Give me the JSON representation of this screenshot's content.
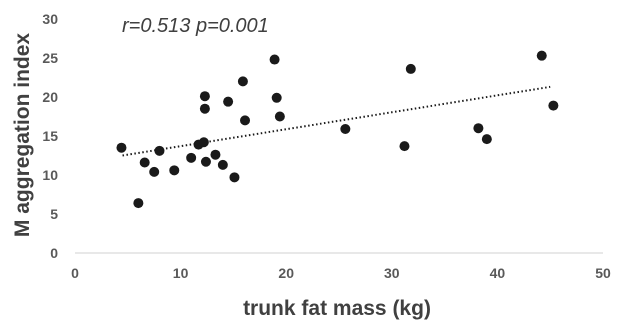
{
  "chart_data": {
    "type": "scatter",
    "xlabel": "trunk fat mass (kg)",
    "ylabel": "M aggregation index",
    "annotation": "r=0.513 p=0.001",
    "xlim": [
      0,
      50
    ],
    "ylim": [
      0,
      30
    ],
    "x_ticks": [
      "0",
      "10",
      "20",
      "30",
      "40",
      "50"
    ],
    "y_ticks": [
      "0",
      "5",
      "10",
      "15",
      "20",
      "25",
      "30"
    ],
    "grid": false,
    "legend": "none",
    "point_color": "#1a1a1a",
    "trendline": {
      "style": "dotted",
      "x": [
        4.5,
        45
      ],
      "y": [
        12.5,
        21.3
      ]
    },
    "points": [
      {
        "x": 4.4,
        "y": 13.5
      },
      {
        "x": 6.0,
        "y": 6.4
      },
      {
        "x": 6.6,
        "y": 11.6
      },
      {
        "x": 7.5,
        "y": 10.4
      },
      {
        "x": 8.0,
        "y": 13.1
      },
      {
        "x": 9.4,
        "y": 10.6
      },
      {
        "x": 11.0,
        "y": 12.2
      },
      {
        "x": 11.7,
        "y": 13.9
      },
      {
        "x": 12.2,
        "y": 14.2
      },
      {
        "x": 12.3,
        "y": 20.1
      },
      {
        "x": 12.3,
        "y": 18.5
      },
      {
        "x": 12.4,
        "y": 11.7
      },
      {
        "x": 13.3,
        "y": 12.6
      },
      {
        "x": 14.0,
        "y": 11.3
      },
      {
        "x": 14.5,
        "y": 19.4
      },
      {
        "x": 15.1,
        "y": 9.7
      },
      {
        "x": 15.9,
        "y": 22.0
      },
      {
        "x": 16.1,
        "y": 17.0
      },
      {
        "x": 18.9,
        "y": 24.8
      },
      {
        "x": 19.1,
        "y": 19.9
      },
      {
        "x": 19.4,
        "y": 17.5
      },
      {
        "x": 25.6,
        "y": 15.9
      },
      {
        "x": 31.2,
        "y": 13.7
      },
      {
        "x": 31.8,
        "y": 23.6
      },
      {
        "x": 38.2,
        "y": 16.0
      },
      {
        "x": 39.0,
        "y": 14.6
      },
      {
        "x": 44.2,
        "y": 25.3
      },
      {
        "x": 45.3,
        "y": 18.9
      }
    ]
  }
}
